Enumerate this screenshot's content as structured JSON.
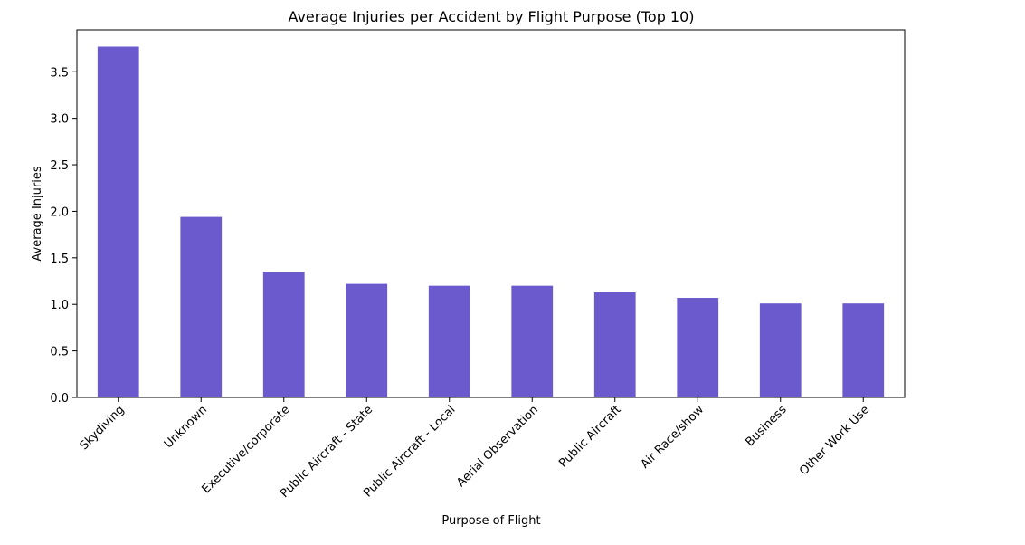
{
  "chart_data": {
    "type": "bar",
    "title": "Average Injuries per Accident by Flight Purpose (Top 10)",
    "xlabel": "Purpose of Flight",
    "ylabel": "Average Injuries",
    "categories": [
      "Skydiving",
      "Unknown",
      "Executive/corporate",
      "Public Aircraft - State",
      "Public Aircraft - Local",
      "Aerial Observation",
      "Public Aircraft",
      "Air Race/show",
      "Business",
      "Other Work Use"
    ],
    "values": [
      3.77,
      1.94,
      1.35,
      1.22,
      1.2,
      1.2,
      1.13,
      1.07,
      1.01,
      1.01
    ],
    "ylim": [
      0,
      3.95
    ],
    "yticks": [
      "0.0",
      "0.5",
      "1.0",
      "1.5",
      "2.0",
      "2.5",
      "3.0",
      "3.5"
    ],
    "bar_color": "#6a5acd",
    "grid": false,
    "legend": false
  }
}
